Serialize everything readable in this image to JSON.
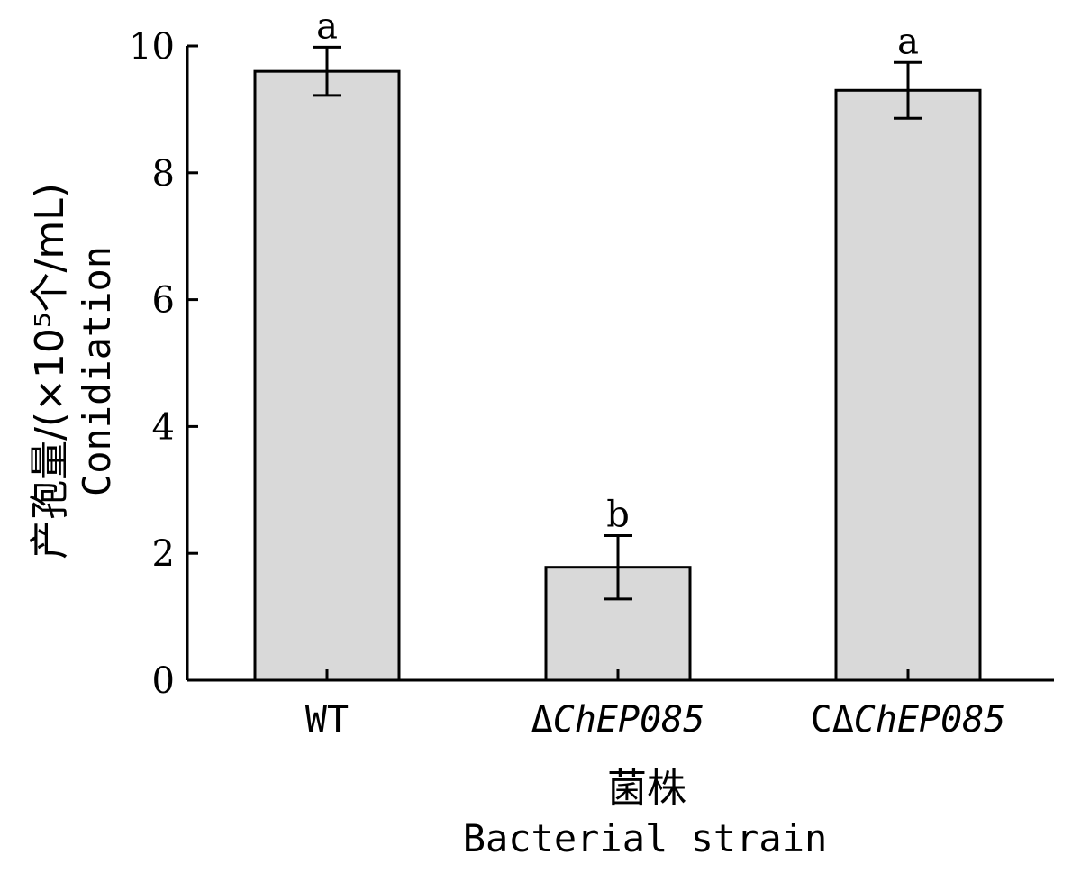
{
  "chart_data": {
    "type": "bar",
    "categories": [
      {
        "prefix": "",
        "label": "WT"
      },
      {
        "prefix": "Δ",
        "label": "ChEP085"
      },
      {
        "prefix": "CΔ",
        "label": "ChEP085"
      }
    ],
    "values": [
      9.6,
      1.78,
      9.3
    ],
    "errors": [
      0.38,
      0.5,
      0.44
    ],
    "significance": [
      "a",
      "b",
      "a"
    ],
    "xlabel_cn": "菌株",
    "xlabel_en": "Bacterial strain",
    "ylabel_cn": "产孢量/(×10⁵个/mL)",
    "ylabel_en": "Conidiation",
    "ylim": [
      0,
      10
    ],
    "yticks": [
      0,
      2,
      4,
      6,
      8,
      10
    ],
    "bar_color": "#d9d9d9",
    "edge_color": "#000000",
    "grid": false,
    "legend": "none"
  }
}
